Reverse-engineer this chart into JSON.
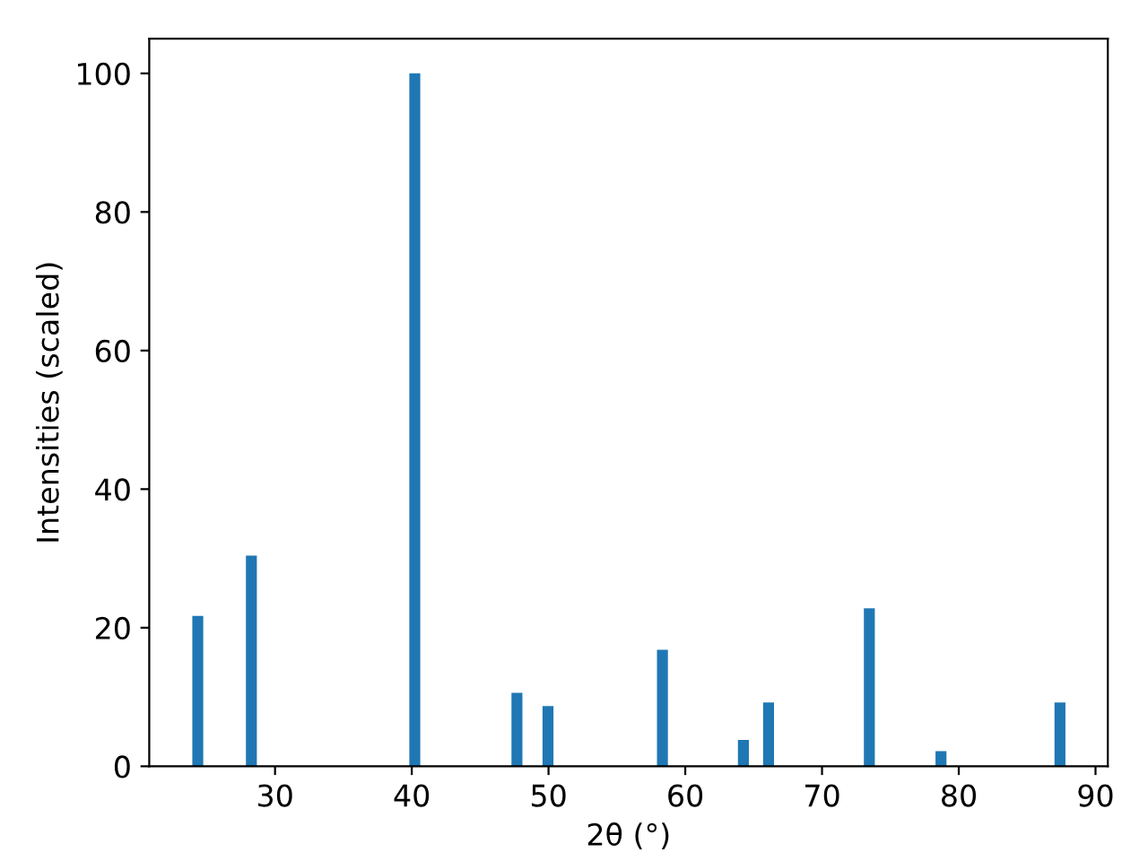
{
  "chart_data": {
    "type": "bar",
    "xlabel": "2θ (°)",
    "ylabel": "Intensities (scaled)",
    "x": [
      24.35,
      28.27,
      40.22,
      47.69,
      49.96,
      58.33,
      64.25,
      66.09,
      73.46,
      78.7,
      87.4
    ],
    "values": [
      21.7,
      30.4,
      100,
      10.6,
      8.7,
      16.8,
      3.8,
      9.2,
      22.8,
      2.2,
      9.2
    ],
    "color": "#1f77b4",
    "xlim": [
      20.8,
      90.9
    ],
    "xticks": [
      30,
      40,
      50,
      60,
      70,
      80,
      90
    ],
    "ylim": [
      0,
      105
    ],
    "yticks": [
      0,
      20,
      40,
      60,
      80,
      100
    ],
    "grid": false
  }
}
